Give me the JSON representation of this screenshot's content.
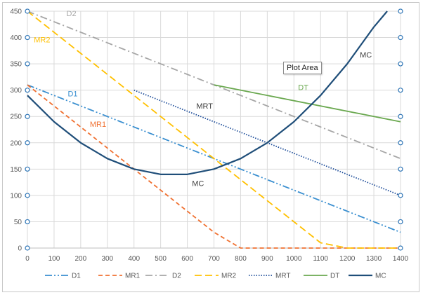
{
  "chart_data": {
    "type": "line",
    "title": "",
    "xlabel": "",
    "ylabel": "",
    "xlim": [
      0,
      1400
    ],
    "ylim": [
      0,
      450
    ],
    "x_ticks": [
      0,
      100,
      200,
      300,
      400,
      500,
      600,
      700,
      800,
      900,
      1000,
      1100,
      1200,
      1300,
      1400
    ],
    "y_ticks": [
      0,
      50,
      100,
      150,
      200,
      250,
      300,
      350,
      400,
      450
    ],
    "grid": true,
    "legend": "bottom",
    "series": [
      {
        "name": "D1",
        "color": "#3A8FD0",
        "dash": "dashdotdot",
        "points": [
          [
            0,
            310
          ],
          [
            1400,
            30
          ]
        ]
      },
      {
        "name": "MR1",
        "color": "#F07030",
        "dash": "dash",
        "points": [
          [
            0,
            310
          ],
          [
            700,
            30
          ],
          [
            800,
            0
          ],
          [
            1400,
            0
          ]
        ]
      },
      {
        "name": "D2",
        "color": "#A6A6A6",
        "dash": "dashdot",
        "points": [
          [
            0,
            450
          ],
          [
            1400,
            170
          ]
        ]
      },
      {
        "name": "MR2",
        "color": "#FFC000",
        "dash": "longdash",
        "points": [
          [
            0,
            450
          ],
          [
            1100,
            10
          ],
          [
            1200,
            0
          ],
          [
            1400,
            0
          ]
        ]
      },
      {
        "name": "MRT",
        "color": "#1F4E9A",
        "dash": "dot",
        "points": [
          [
            400,
            300
          ],
          [
            1400,
            100
          ]
        ]
      },
      {
        "name": "DT",
        "color": "#6AA84F",
        "dash": "solid",
        "points": [
          [
            700,
            310
          ],
          [
            1400,
            240
          ]
        ]
      },
      {
        "name": "MC",
        "color": "#1F4E79",
        "dash": "solid",
        "points": [
          [
            0,
            290
          ],
          [
            100,
            240
          ],
          [
            200,
            200
          ],
          [
            300,
            170
          ],
          [
            400,
            150
          ],
          [
            500,
            140
          ],
          [
            600,
            140
          ],
          [
            700,
            150
          ],
          [
            800,
            170
          ],
          [
            900,
            200
          ],
          [
            1000,
            240
          ],
          [
            1100,
            290
          ],
          [
            1200,
            350
          ],
          [
            1300,
            420
          ],
          [
            1350,
            450
          ]
        ]
      }
    ],
    "annotations": [
      {
        "text": "D2",
        "x": 165,
        "y": 441,
        "series": "D2"
      },
      {
        "text": "MR2",
        "x": 55,
        "y": 391,
        "series": "MR2"
      },
      {
        "text": "D1",
        "x": 170,
        "y": 288,
        "series": "D1"
      },
      {
        "text": "MR1",
        "x": 265,
        "y": 230,
        "series": "MR1"
      },
      {
        "text": "MRT",
        "x": 665,
        "y": 265,
        "series": "MRT"
      },
      {
        "text": "MC",
        "x": 640,
        "y": 118,
        "series": "MC"
      },
      {
        "text": "DT",
        "x": 1035,
        "y": 300,
        "series": "DT"
      },
      {
        "text": "MC",
        "x": 1270,
        "y": 362,
        "series": "MC"
      }
    ]
  },
  "tooltip": {
    "text": "Plot Area"
  }
}
